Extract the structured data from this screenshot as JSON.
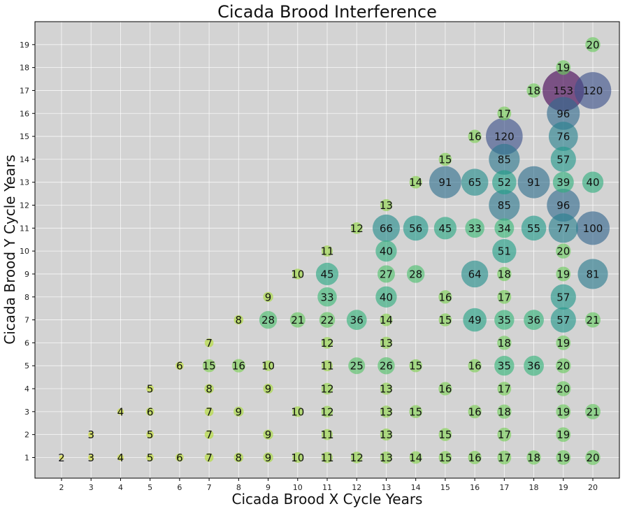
{
  "chart_data": {
    "type": "scatter",
    "title": "Cicada Brood Interference",
    "xlabel": "Cicada Brood X Cycle Years",
    "ylabel": "Cicada Brood Y Cycle Years",
    "xlim": [
      1.1,
      20.9
    ],
    "ylim": [
      0.1,
      20
    ],
    "x_ticks": [
      2,
      3,
      4,
      5,
      6,
      7,
      8,
      9,
      10,
      11,
      12,
      13,
      14,
      15,
      16,
      17,
      18,
      19,
      20
    ],
    "y_ticks": [
      1,
      2,
      3,
      4,
      5,
      6,
      7,
      8,
      9,
      10,
      11,
      12,
      13,
      14,
      15,
      16,
      17,
      18,
      19
    ],
    "grid": true,
    "plot_background": "#d3d3d3",
    "colormap": "viridis_r",
    "size_encodes": "label value",
    "points": [
      {
        "x": 2,
        "y": 1,
        "value": 2
      },
      {
        "x": 3,
        "y": 1,
        "value": 3
      },
      {
        "x": 4,
        "y": 1,
        "value": 4
      },
      {
        "x": 5,
        "y": 1,
        "value": 5
      },
      {
        "x": 6,
        "y": 1,
        "value": 6
      },
      {
        "x": 7,
        "y": 1,
        "value": 7
      },
      {
        "x": 8,
        "y": 1,
        "value": 8
      },
      {
        "x": 9,
        "y": 1,
        "value": 9
      },
      {
        "x": 10,
        "y": 1,
        "value": 10
      },
      {
        "x": 11,
        "y": 1,
        "value": 11
      },
      {
        "x": 12,
        "y": 1,
        "value": 12
      },
      {
        "x": 13,
        "y": 1,
        "value": 13
      },
      {
        "x": 14,
        "y": 1,
        "value": 14
      },
      {
        "x": 15,
        "y": 1,
        "value": 15
      },
      {
        "x": 16,
        "y": 1,
        "value": 16
      },
      {
        "x": 17,
        "y": 1,
        "value": 17
      },
      {
        "x": 18,
        "y": 1,
        "value": 18
      },
      {
        "x": 19,
        "y": 1,
        "value": 19
      },
      {
        "x": 20,
        "y": 1,
        "value": 20
      },
      {
        "x": 3,
        "y": 2,
        "value": 3
      },
      {
        "x": 5,
        "y": 2,
        "value": 5
      },
      {
        "x": 7,
        "y": 2,
        "value": 7
      },
      {
        "x": 9,
        "y": 2,
        "value": 9
      },
      {
        "x": 11,
        "y": 2,
        "value": 11
      },
      {
        "x": 13,
        "y": 2,
        "value": 13
      },
      {
        "x": 15,
        "y": 2,
        "value": 15
      },
      {
        "x": 17,
        "y": 2,
        "value": 17
      },
      {
        "x": 19,
        "y": 2,
        "value": 19
      },
      {
        "x": 4,
        "y": 3,
        "value": 4
      },
      {
        "x": 5,
        "y": 3,
        "value": 6
      },
      {
        "x": 7,
        "y": 3,
        "value": 7
      },
      {
        "x": 8,
        "y": 3,
        "value": 9
      },
      {
        "x": 10,
        "y": 3,
        "value": 10
      },
      {
        "x": 11,
        "y": 3,
        "value": 12
      },
      {
        "x": 13,
        "y": 3,
        "value": 13
      },
      {
        "x": 14,
        "y": 3,
        "value": 15
      },
      {
        "x": 16,
        "y": 3,
        "value": 16
      },
      {
        "x": 17,
        "y": 3,
        "value": 18
      },
      {
        "x": 19,
        "y": 3,
        "value": 19
      },
      {
        "x": 20,
        "y": 3,
        "value": 21
      },
      {
        "x": 5,
        "y": 4,
        "value": 5
      },
      {
        "x": 7,
        "y": 4,
        "value": 8
      },
      {
        "x": 9,
        "y": 4,
        "value": 9
      },
      {
        "x": 11,
        "y": 4,
        "value": 12
      },
      {
        "x": 13,
        "y": 4,
        "value": 13
      },
      {
        "x": 15,
        "y": 4,
        "value": 16
      },
      {
        "x": 17,
        "y": 4,
        "value": 17
      },
      {
        "x": 19,
        "y": 4,
        "value": 20
      },
      {
        "x": 6,
        "y": 5,
        "value": 6
      },
      {
        "x": 7,
        "y": 5,
        "value": 15
      },
      {
        "x": 8,
        "y": 5,
        "value": 16
      },
      {
        "x": 9,
        "y": 5,
        "value": 10
      },
      {
        "x": 11,
        "y": 5,
        "value": 11
      },
      {
        "x": 12,
        "y": 5,
        "value": 25
      },
      {
        "x": 13,
        "y": 5,
        "value": 26
      },
      {
        "x": 14,
        "y": 5,
        "value": 15
      },
      {
        "x": 16,
        "y": 5,
        "value": 16
      },
      {
        "x": 17,
        "y": 5,
        "value": 35
      },
      {
        "x": 18,
        "y": 5,
        "value": 36
      },
      {
        "x": 19,
        "y": 5,
        "value": 20
      },
      {
        "x": 7,
        "y": 6,
        "value": 7
      },
      {
        "x": 11,
        "y": 6,
        "value": 12
      },
      {
        "x": 13,
        "y": 6,
        "value": 13
      },
      {
        "x": 17,
        "y": 6,
        "value": 18
      },
      {
        "x": 19,
        "y": 6,
        "value": 19
      },
      {
        "x": 8,
        "y": 7,
        "value": 8
      },
      {
        "x": 9,
        "y": 7,
        "value": 28
      },
      {
        "x": 10,
        "y": 7,
        "value": 21
      },
      {
        "x": 11,
        "y": 7,
        "value": 22
      },
      {
        "x": 12,
        "y": 7,
        "value": 36
      },
      {
        "x": 13,
        "y": 7,
        "value": 14
      },
      {
        "x": 15,
        "y": 7,
        "value": 15
      },
      {
        "x": 16,
        "y": 7,
        "value": 49
      },
      {
        "x": 17,
        "y": 7,
        "value": 35
      },
      {
        "x": 18,
        "y": 7,
        "value": 36
      },
      {
        "x": 19,
        "y": 7,
        "value": 57
      },
      {
        "x": 20,
        "y": 7,
        "value": 21
      },
      {
        "x": 9,
        "y": 8,
        "value": 9
      },
      {
        "x": 11,
        "y": 8,
        "value": 33
      },
      {
        "x": 13,
        "y": 8,
        "value": 40
      },
      {
        "x": 15,
        "y": 8,
        "value": 16
      },
      {
        "x": 17,
        "y": 8,
        "value": 17
      },
      {
        "x": 19,
        "y": 8,
        "value": 57
      },
      {
        "x": 10,
        "y": 9,
        "value": 10
      },
      {
        "x": 11,
        "y": 9,
        "value": 45
      },
      {
        "x": 13,
        "y": 9,
        "value": 27
      },
      {
        "x": 14,
        "y": 9,
        "value": 28
      },
      {
        "x": 16,
        "y": 9,
        "value": 64
      },
      {
        "x": 17,
        "y": 9,
        "value": 18
      },
      {
        "x": 19,
        "y": 9,
        "value": 19
      },
      {
        "x": 20,
        "y": 9,
        "value": 81
      },
      {
        "x": 11,
        "y": 10,
        "value": 11
      },
      {
        "x": 13,
        "y": 10,
        "value": 40
      },
      {
        "x": 17,
        "y": 10,
        "value": 51
      },
      {
        "x": 19,
        "y": 10,
        "value": 20
      },
      {
        "x": 12,
        "y": 11,
        "value": 12
      },
      {
        "x": 13,
        "y": 11,
        "value": 66
      },
      {
        "x": 14,
        "y": 11,
        "value": 56
      },
      {
        "x": 15,
        "y": 11,
        "value": 45
      },
      {
        "x": 16,
        "y": 11,
        "value": 33
      },
      {
        "x": 17,
        "y": 11,
        "value": 34
      },
      {
        "x": 18,
        "y": 11,
        "value": 55
      },
      {
        "x": 19,
        "y": 11,
        "value": 77
      },
      {
        "x": 20,
        "y": 11,
        "value": 100
      },
      {
        "x": 13,
        "y": 12,
        "value": 13
      },
      {
        "x": 17,
        "y": 12,
        "value": 85
      },
      {
        "x": 19,
        "y": 12,
        "value": 96
      },
      {
        "x": 14,
        "y": 13,
        "value": 14
      },
      {
        "x": 15,
        "y": 13,
        "value": 91
      },
      {
        "x": 16,
        "y": 13,
        "value": 65
      },
      {
        "x": 17,
        "y": 13,
        "value": 52
      },
      {
        "x": 18,
        "y": 13,
        "value": 91
      },
      {
        "x": 19,
        "y": 13,
        "value": 39
      },
      {
        "x": 20,
        "y": 13,
        "value": 40
      },
      {
        "x": 15,
        "y": 14,
        "value": 15
      },
      {
        "x": 17,
        "y": 14,
        "value": 85
      },
      {
        "x": 19,
        "y": 14,
        "value": 57
      },
      {
        "x": 16,
        "y": 15,
        "value": 16
      },
      {
        "x": 17,
        "y": 15,
        "value": 120
      },
      {
        "x": 19,
        "y": 15,
        "value": 76
      },
      {
        "x": 17,
        "y": 16,
        "value": 17
      },
      {
        "x": 19,
        "y": 16,
        "value": 96
      },
      {
        "x": 18,
        "y": 17,
        "value": 18
      },
      {
        "x": 19,
        "y": 17,
        "value": 153
      },
      {
        "x": 20,
        "y": 17,
        "value": 120
      },
      {
        "x": 19,
        "y": 18,
        "value": 19
      },
      {
        "x": 20,
        "y": 19,
        "value": 20
      }
    ]
  }
}
